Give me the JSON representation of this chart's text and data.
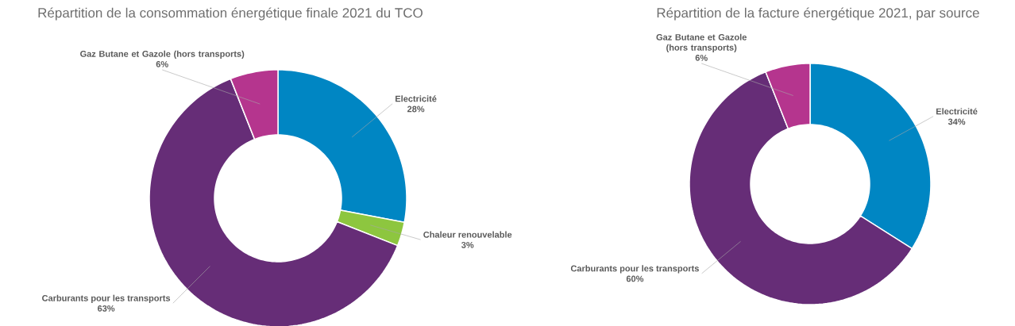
{
  "chart_data": [
    {
      "type": "donut",
      "title": "Répartition de la consommation énergétique finale 2021 du TCO",
      "categories": [
        "Electricité",
        "Chaleur renouvelable",
        "Carburants pour les transports",
        "Gaz Butane et Gazole (hors transports)"
      ],
      "values": [
        28,
        3,
        63,
        6
      ],
      "colors": [
        "#0086c3",
        "#8dc63f",
        "#662d77",
        "#b5358e"
      ],
      "value_labels": [
        "28%",
        "3%",
        "63%",
        "6%"
      ]
    },
    {
      "type": "donut",
      "title": "Répartition de la facture énergétique 2021, par source",
      "categories": [
        "Electricité",
        "Carburants pour les transports",
        "Gaz Butane et Gazole (hors transports)"
      ],
      "values": [
        34,
        60,
        6
      ],
      "colors": [
        "#0086c3",
        "#662d77",
        "#b5358e"
      ],
      "value_labels": [
        "34%",
        "60%",
        "6%"
      ]
    }
  ]
}
